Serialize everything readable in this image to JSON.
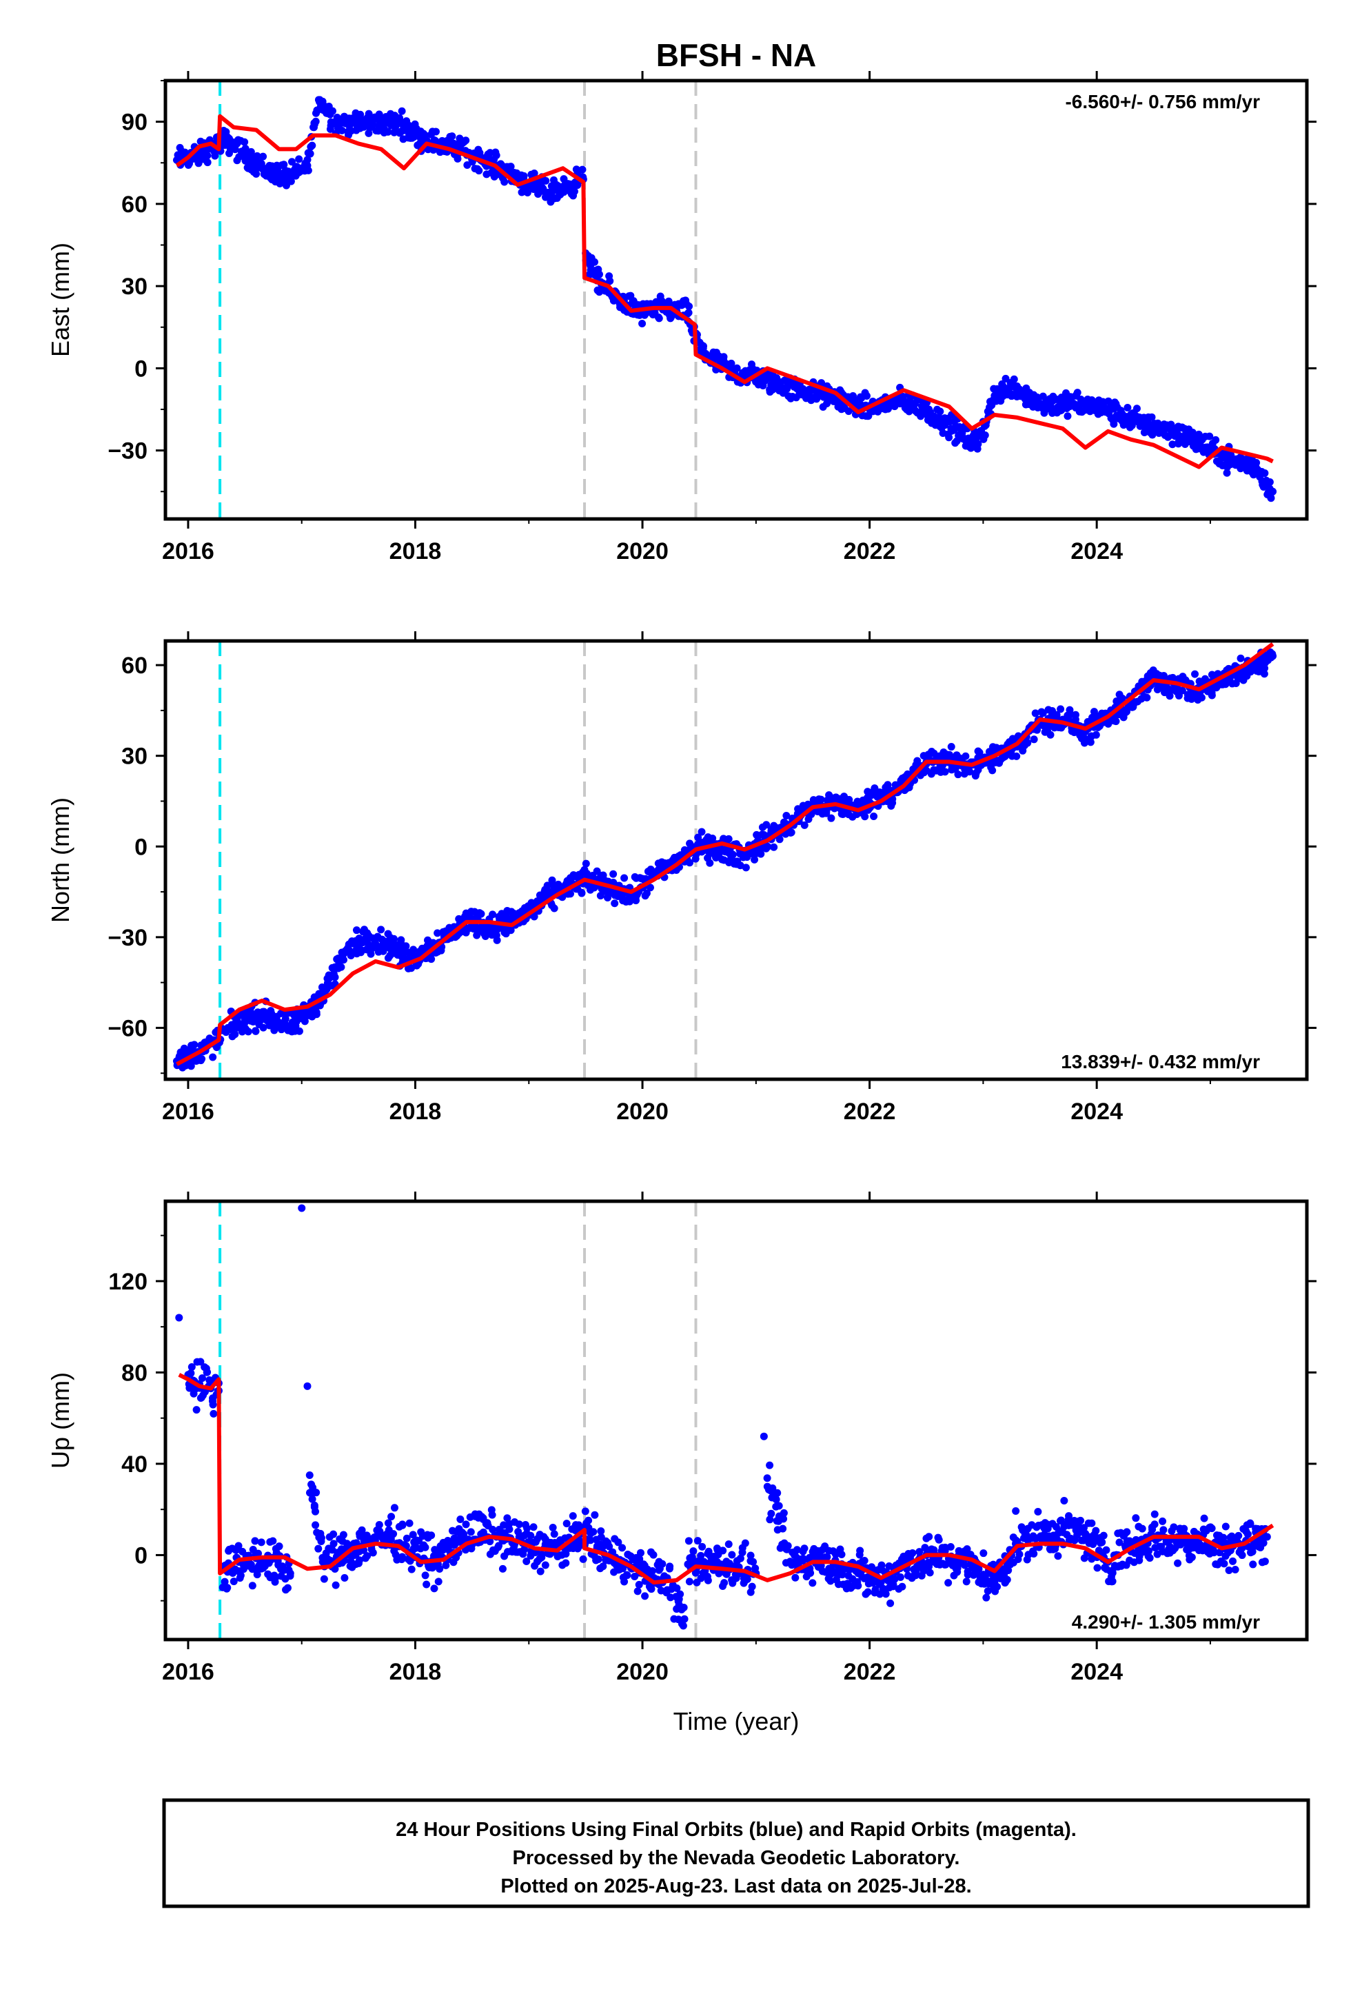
{
  "chart_data": [
    {
      "type": "scatter",
      "title": "BFSH - NA",
      "ylabel": "East (mm)",
      "xlabel": "",
      "annotation": "-6.560+/- 0.756 mm/yr",
      "xlim": [
        2015.8,
        2025.85
      ],
      "ylim": [
        -55,
        105
      ],
      "xticks": [
        2016,
        2018,
        2020,
        2022,
        2024
      ],
      "yticks": [
        90,
        60,
        30,
        0,
        -30
      ],
      "steps": [
        {
          "x": 2016.28,
          "color": "#00e5f0",
          "style": "dashed"
        },
        {
          "x": 2019.49,
          "color": "#c8c8c8",
          "style": "dashed"
        },
        {
          "x": 2020.47,
          "color": "#c8c8c8",
          "style": "dashed"
        }
      ],
      "series": [
        {
          "color": "#0000ff",
          "kind": "points",
          "x": [
            2015.9,
            2016.1,
            2016.27,
            2016.35,
            2016.5,
            2016.7,
            2016.9,
            2017.05,
            2017.15,
            2017.3,
            2017.5,
            2017.7,
            2017.9,
            2018.0,
            2018.2,
            2018.4,
            2018.6,
            2018.8,
            2019.0,
            2019.2,
            2019.35,
            2019.48,
            2019.5,
            2019.6,
            2019.8,
            2020.0,
            2020.2,
            2020.4,
            2020.47,
            2020.6,
            2020.8,
            2021.0,
            2021.2,
            2021.4,
            2021.6,
            2021.8,
            2022.0,
            2022.2,
            2022.4,
            2022.6,
            2022.8,
            2022.95,
            2023.1,
            2023.25,
            2023.5,
            2023.75,
            2024.0,
            2024.2,
            2024.4,
            2024.6,
            2024.8,
            2025.0,
            2025.2,
            2025.4,
            2025.55
          ],
          "y": [
            76,
            78,
            82,
            83,
            78,
            72,
            70,
            74,
            98,
            90,
            89,
            90,
            89,
            85,
            82,
            80,
            76,
            72,
            67,
            64,
            67,
            69,
            42,
            32,
            25,
            20,
            22,
            20,
            10,
            3,
            -2,
            -3,
            -6,
            -8,
            -10,
            -12,
            -15,
            -12,
            -13,
            -18,
            -24,
            -28,
            -10,
            -6,
            -13,
            -13,
            -14,
            -17,
            -20,
            -22,
            -25,
            -30,
            -34,
            -36,
            -45
          ]
        },
        {
          "color": "#ff0000",
          "kind": "line",
          "segments": [
            {
              "x": [
                2015.9,
                2016.0,
                2016.1,
                2016.2,
                2016.27
              ],
              "y": [
                74,
                77,
                81,
                82,
                80
              ]
            },
            {
              "x": [
                2016.28,
                2016.4,
                2016.6,
                2016.8,
                2016.95,
                2017.1,
                2017.3,
                2017.5,
                2017.7,
                2017.9,
                2018.1,
                2018.3,
                2018.5,
                2018.7,
                2018.9,
                2019.1,
                2019.3,
                2019.48
              ],
              "y": [
                92,
                88,
                87,
                80,
                80,
                85,
                85,
                82,
                80,
                73,
                82,
                80,
                77,
                74,
                67,
                70,
                73,
                68
              ]
            },
            {
              "x": [
                2019.49,
                2019.7,
                2019.9,
                2020.1,
                2020.25,
                2020.46
              ],
              "y": [
                33,
                30,
                21,
                22,
                22,
                16
              ]
            },
            {
              "x": [
                2020.47,
                2020.7,
                2020.9,
                2021.1,
                2021.3,
                2021.5,
                2021.7,
                2021.9,
                2022.1,
                2022.3,
                2022.5,
                2022.7,
                2022.9,
                2023.1,
                2023.3,
                2023.5,
                2023.7,
                2023.9,
                2024.1,
                2024.3,
                2024.5,
                2024.7,
                2024.9,
                2025.1,
                2025.3,
                2025.5,
                2025.55
              ],
              "y": [
                5,
                0,
                -5,
                0,
                -3,
                -6,
                -9,
                -16,
                -12,
                -8,
                -11,
                -14,
                -22,
                -17,
                -18,
                -20,
                -22,
                -29,
                -23,
                -26,
                -28,
                -32,
                -36,
                -29,
                -31,
                -33,
                -34
              ]
            }
          ]
        }
      ]
    },
    {
      "type": "scatter",
      "title": "",
      "ylabel": "North (mm)",
      "xlabel": "",
      "annotation": "13.839+/- 0.432 mm/yr",
      "xlim": [
        2015.8,
        2025.85
      ],
      "ylim": [
        -77,
        68
      ],
      "xticks": [
        2016,
        2018,
        2020,
        2022,
        2024
      ],
      "yticks": [
        60,
        30,
        0,
        -30,
        -60
      ],
      "steps": [
        {
          "x": 2016.28,
          "color": "#00e5f0",
          "style": "dashed"
        },
        {
          "x": 2019.49,
          "color": "#c8c8c8",
          "style": "dashed"
        },
        {
          "x": 2020.47,
          "color": "#c8c8c8",
          "style": "dashed"
        }
      ],
      "series": [
        {
          "color": "#0000ff",
          "kind": "points",
          "x": [
            2015.9,
            2016.1,
            2016.27,
            2016.35,
            2016.5,
            2016.7,
            2016.9,
            2017.05,
            2017.2,
            2017.4,
            2017.6,
            2017.8,
            2017.95,
            2018.1,
            2018.3,
            2018.5,
            2018.7,
            2018.9,
            2019.1,
            2019.3,
            2019.5,
            2019.7,
            2019.9,
            2020.1,
            2020.3,
            2020.5,
            2020.7,
            2020.9,
            2021.1,
            2021.3,
            2021.5,
            2021.7,
            2021.9,
            2022.1,
            2022.3,
            2022.5,
            2022.7,
            2022.9,
            2023.1,
            2023.3,
            2023.5,
            2023.7,
            2023.9,
            2024.1,
            2024.3,
            2024.5,
            2024.7,
            2024.9,
            2025.1,
            2025.3,
            2025.5,
            2025.55
          ],
          "y": [
            -71,
            -68,
            -64,
            -60,
            -57,
            -56,
            -60,
            -55,
            -48,
            -34,
            -30,
            -33,
            -38,
            -34,
            -29,
            -24,
            -27,
            -24,
            -19,
            -14,
            -11,
            -13,
            -16,
            -10,
            -5,
            0,
            -1,
            -3,
            3,
            7,
            13,
            14,
            12,
            17,
            20,
            28,
            28,
            27,
            29,
            33,
            42,
            42,
            38,
            42,
            48,
            55,
            54,
            51,
            55,
            58,
            62,
            63
          ]
        },
        {
          "color": "#ff0000",
          "kind": "line",
          "segments": [
            {
              "x": [
                2015.9,
                2016.1,
                2016.27
              ],
              "y": [
                -72,
                -68,
                -64
              ]
            },
            {
              "x": [
                2016.28,
                2016.45,
                2016.65,
                2016.85,
                2017.05,
                2017.25,
                2017.45,
                2017.65,
                2017.85,
                2018.05,
                2018.25,
                2018.45,
                2018.65,
                2018.85,
                2019.05,
                2019.25,
                2019.49
              ],
              "y": [
                -59,
                -54,
                -51,
                -54,
                -53,
                -49,
                -42,
                -38,
                -40,
                -37,
                -31,
                -25,
                -25,
                -26,
                -21,
                -16,
                -11
              ]
            },
            {
              "x": [
                2019.49,
                2019.7,
                2019.9,
                2020.1,
                2020.3,
                2020.47
              ],
              "y": [
                -11,
                -13,
                -15,
                -11,
                -6,
                -1
              ]
            },
            {
              "x": [
                2020.47,
                2020.7,
                2020.9,
                2021.1,
                2021.3,
                2021.5,
                2021.7,
                2021.9,
                2022.1,
                2022.3,
                2022.5,
                2022.7,
                2022.9,
                2023.1,
                2023.3,
                2023.5,
                2023.7,
                2023.9,
                2024.1,
                2024.3,
                2024.5,
                2024.7,
                2024.9,
                2025.1,
                2025.3,
                2025.55
              ],
              "y": [
                -1,
                1,
                -1,
                2,
                7,
                13,
                14,
                12,
                15,
                20,
                28,
                28,
                27,
                30,
                34,
                42,
                41,
                39,
                43,
                49,
                55,
                54,
                52,
                56,
                60,
                67
              ]
            }
          ]
        }
      ]
    },
    {
      "type": "scatter",
      "title": "",
      "ylabel": "Up (mm)",
      "xlabel": "Time (year)",
      "annotation": "4.290+/- 1.305 mm/yr",
      "xlim": [
        2015.8,
        2025.85
      ],
      "ylim": [
        -37,
        155
      ],
      "xticks": [
        2016,
        2018,
        2020,
        2022,
        2024
      ],
      "yticks": [
        120,
        80,
        40,
        0
      ],
      "steps": [
        {
          "x": 2016.28,
          "color": "#00e5f0",
          "style": "dashed"
        },
        {
          "x": 2019.49,
          "color": "#c8c8c8",
          "style": "dashed"
        },
        {
          "x": 2020.47,
          "color": "#c8c8c8",
          "style": "dashed"
        }
      ],
      "series": [
        {
          "color": "#0000ff",
          "kind": "points",
          "x": [
            2015.92,
            2016.0,
            2016.1,
            2016.2,
            2016.27,
            2016.3,
            2016.5,
            2016.7,
            2016.9,
            2017.0,
            2017.05,
            2017.07,
            2017.2,
            2017.4,
            2017.6,
            2017.8,
            2018.0,
            2018.2,
            2018.4,
            2018.6,
            2018.8,
            2019.0,
            2019.2,
            2019.4,
            2019.47,
            2019.6,
            2019.8,
            2020.0,
            2020.2,
            2020.37,
            2020.4,
            2020.6,
            2020.8,
            2021.0,
            2021.07,
            2021.1,
            2021.3,
            2021.5,
            2021.7,
            2021.9,
            2022.1,
            2022.3,
            2022.5,
            2022.7,
            2022.9,
            2023.1,
            2023.3,
            2023.5,
            2023.7,
            2023.9,
            2024.1,
            2024.3,
            2024.5,
            2024.7,
            2024.9,
            2025.1,
            2025.3,
            2025.5
          ],
          "y": [
            104,
            79,
            75,
            73,
            72,
            -5,
            -3,
            -2,
            -8,
            152,
            74,
            35,
            -5,
            2,
            6,
            9,
            3,
            -4,
            8,
            10,
            7,
            5,
            2,
            6,
            12,
            3,
            -2,
            -8,
            -10,
            -28,
            -4,
            -3,
            -5,
            -8,
            52,
            30,
            -3,
            -2,
            -4,
            -8,
            -12,
            -5,
            0,
            -2,
            -5,
            -12,
            6,
            8,
            10,
            9,
            -3,
            5,
            8,
            6,
            7,
            4,
            5,
            8
          ]
        },
        {
          "color": "#ff0000",
          "kind": "line",
          "segments": [
            {
              "x": [
                2015.92,
                2016.0,
                2016.1,
                2016.2,
                2016.27
              ],
              "y": [
                79,
                77,
                74,
                73,
                77
              ]
            },
            {
              "x": [
                2016.28,
                2016.45,
                2016.65,
                2016.85,
                2017.05,
                2017.25,
                2017.45,
                2017.65,
                2017.85,
                2018.05,
                2018.25,
                2018.45,
                2018.65,
                2018.85,
                2019.05,
                2019.25,
                2019.49
              ],
              "y": [
                -8,
                -2,
                -1,
                -1,
                -6,
                -5,
                3,
                5,
                4,
                -3,
                -2,
                5,
                8,
                7,
                3,
                2,
                11
              ]
            },
            {
              "x": [
                2019.49,
                2019.7,
                2019.9,
                2020.1,
                2020.3,
                2020.47
              ],
              "y": [
                3,
                0,
                -5,
                -12,
                -11,
                -5
              ]
            },
            {
              "x": [
                2020.47,
                2020.7,
                2020.9,
                2021.1,
                2021.3,
                2021.5,
                2021.7,
                2021.9,
                2022.1,
                2022.3,
                2022.5,
                2022.7,
                2022.9,
                2023.1,
                2023.3,
                2023.5,
                2023.7,
                2023.9,
                2024.1,
                2024.3,
                2024.5,
                2024.7,
                2024.9,
                2025.1,
                2025.3,
                2025.55
              ],
              "y": [
                -5,
                -6,
                -7,
                -11,
                -8,
                -3,
                -3,
                -5,
                -10,
                -5,
                0,
                0,
                -2,
                -7,
                4,
                5,
                5,
                3,
                -3,
                3,
                8,
                8,
                8,
                3,
                5,
                13
              ]
            }
          ]
        }
      ]
    }
  ],
  "footer": {
    "lines": [
      "24 Hour Positions Using Final Orbits (blue) and Rapid Orbits (magenta).",
      "Processed by the Nevada Geodetic Laboratory.",
      "Plotted on 2025-Aug-23. Last data on 2025-Jul-28."
    ]
  }
}
